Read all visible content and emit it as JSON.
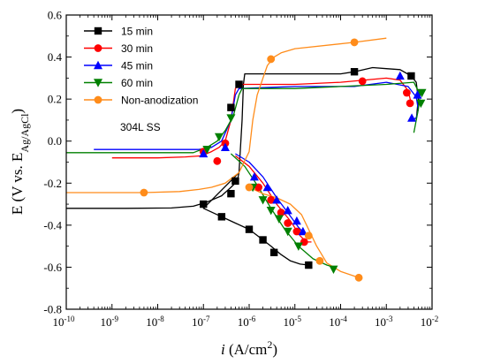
{
  "chart_data": {
    "type": "line",
    "title": "",
    "x_scale": "log",
    "xlim": [
      1e-10,
      0.01
    ],
    "ylim": [
      -0.8,
      0.6
    ],
    "x_ticks": [
      {
        "value": 1e-10,
        "base": "10",
        "exp": "-10"
      },
      {
        "value": 1e-09,
        "base": "10",
        "exp": "-9"
      },
      {
        "value": 1e-08,
        "base": "10",
        "exp": "-8"
      },
      {
        "value": 1e-07,
        "base": "10",
        "exp": "-7"
      },
      {
        "value": 1e-06,
        "base": "10",
        "exp": "-6"
      },
      {
        "value": 1e-05,
        "base": "10",
        "exp": "-5"
      },
      {
        "value": 0.0001,
        "base": "10",
        "exp": "-4"
      },
      {
        "value": 0.001,
        "base": "10",
        "exp": "-3"
      },
      {
        "value": 0.01,
        "base": "10",
        "exp": "-2"
      }
    ],
    "y_ticks": [
      {
        "value": -0.8,
        "label": "-0.8"
      },
      {
        "value": -0.6,
        "label": "-0.6"
      },
      {
        "value": -0.4,
        "label": "-0.4"
      },
      {
        "value": -0.2,
        "label": "-0.2"
      },
      {
        "value": 0.0,
        "label": "0.0"
      },
      {
        "value": 0.2,
        "label": "0.2"
      },
      {
        "value": 0.4,
        "label": "0.4"
      },
      {
        "value": 0.6,
        "label": "0.6"
      }
    ],
    "xlabel": {
      "italic": "i",
      "main": " (A/cm",
      "sup": "2",
      "end": ")"
    },
    "ylabel": {
      "main": "E (V vs. E",
      "sub": "Ag/AgCl",
      "end": ")"
    },
    "legend": {
      "position": "top-left",
      "note": "304L SS",
      "entries": [
        {
          "series": 0,
          "label": "15 min"
        },
        {
          "series": 1,
          "label": "30 min"
        },
        {
          "series": 2,
          "label": "45 min"
        },
        {
          "series": 3,
          "label": "60 min"
        },
        {
          "series": 4,
          "label": "Non-anodization"
        }
      ]
    },
    "series": [
      {
        "name": "15 min",
        "color": "#000000",
        "marker": "square",
        "cathodic": [
          [
            1e-10,
            -0.32
          ],
          [
            2e-09,
            -0.32
          ],
          [
            2e-08,
            -0.318
          ],
          [
            6e-08,
            -0.31
          ],
          [
            1.2e-07,
            -0.29
          ],
          [
            2.5e-07,
            -0.26
          ],
          [
            4e-07,
            -0.22
          ],
          [
            5.5e-07,
            -0.19
          ],
          [
            6e-07,
            -0.15
          ]
        ],
        "anodic": [
          [
            6e-07,
            -0.15
          ],
          [
            7e-07,
            0.1
          ],
          [
            7.5e-07,
            0.27
          ],
          [
            8e-07,
            0.32
          ],
          [
            1e-05,
            0.32
          ],
          [
            0.0001,
            0.32
          ],
          [
            0.0002,
            0.33
          ],
          [
            0.0005,
            0.35
          ],
          [
            0.001,
            0.345
          ],
          [
            0.002,
            0.34
          ],
          [
            0.0035,
            0.31
          ],
          [
            0.0045,
            0.28
          ],
          [
            0.005,
            0.2
          ],
          [
            0.0045,
            0.1
          ]
        ],
        "lower": [
          [
            6e-07,
            -0.15
          ],
          [
            1e-07,
            -0.32
          ],
          [
            2.5e-07,
            -0.36
          ],
          [
            5e-07,
            -0.39
          ],
          [
            1e-06,
            -0.42
          ],
          [
            2e-06,
            -0.47
          ],
          [
            3e-06,
            -0.5
          ],
          [
            5e-06,
            -0.54
          ],
          [
            8e-06,
            -0.57
          ],
          [
            1.3e-05,
            -0.585
          ],
          [
            2e-05,
            -0.59
          ]
        ],
        "markers": [
          [
            1e-07,
            -0.3
          ],
          [
            2.5e-07,
            -0.36
          ],
          [
            4e-07,
            -0.25
          ],
          [
            5e-07,
            -0.19
          ],
          [
            1e-06,
            -0.42
          ],
          [
            2e-06,
            -0.47
          ],
          [
            3.5e-06,
            -0.53
          ],
          [
            2e-05,
            -0.59
          ],
          [
            4e-07,
            0.16
          ],
          [
            6e-07,
            0.27
          ],
          [
            0.0002,
            0.33
          ],
          [
            0.0035,
            0.31
          ]
        ]
      },
      {
        "name": "30 min",
        "color": "#ff0000",
        "marker": "circle",
        "cathodic": [
          [
            1e-09,
            -0.08
          ],
          [
            1e-08,
            -0.08
          ],
          [
            4e-08,
            -0.075
          ],
          [
            9e-08,
            -0.07
          ],
          [
            1.5e-07,
            -0.05
          ],
          [
            2.2e-07,
            -0.03
          ],
          [
            3e-07,
            0.0
          ],
          [
            4e-07,
            0.1
          ],
          [
            5e-07,
            0.25
          ]
        ],
        "anodic": [
          [
            5e-07,
            0.25
          ],
          [
            6e-07,
            0.27
          ],
          [
            1e-05,
            0.27
          ],
          [
            0.0001,
            0.28
          ],
          [
            0.001,
            0.3
          ],
          [
            0.002,
            0.29
          ],
          [
            0.003,
            0.24
          ],
          [
            0.0035,
            0.18
          ]
        ],
        "lower": [
          [
            5e-07,
            -0.07
          ],
          [
            1e-06,
            -0.12
          ],
          [
            2e-06,
            -0.2
          ],
          [
            4e-06,
            -0.3
          ],
          [
            8e-06,
            -0.38
          ],
          [
            1.3e-05,
            -0.45
          ],
          [
            1.8e-05,
            -0.48
          ],
          [
            2.3e-05,
            -0.48
          ]
        ],
        "markers": [
          [
            1e-07,
            -0.05
          ],
          [
            2e-07,
            -0.095
          ],
          [
            3e-07,
            -0.01
          ],
          [
            1.6e-06,
            -0.22
          ],
          [
            3e-06,
            -0.28
          ],
          [
            5e-06,
            -0.34
          ],
          [
            7e-06,
            -0.39
          ],
          [
            1.1e-05,
            -0.43
          ],
          [
            1.6e-05,
            -0.48
          ],
          [
            0.0003,
            0.285
          ],
          [
            0.0028,
            0.23
          ],
          [
            0.0033,
            0.18
          ]
        ]
      },
      {
        "name": "45 min",
        "color": "#0000ff",
        "marker": "triangle-up",
        "cathodic": [
          [
            4e-10,
            -0.04
          ],
          [
            3e-09,
            -0.04
          ],
          [
            3e-08,
            -0.04
          ],
          [
            8e-08,
            -0.04
          ],
          [
            1.5e-07,
            -0.03
          ],
          [
            2.5e-07,
            0.0
          ],
          [
            4e-07,
            0.1
          ],
          [
            5e-07,
            0.22
          ]
        ],
        "anodic": [
          [
            5e-07,
            0.22
          ],
          [
            6e-07,
            0.25
          ],
          [
            1e-05,
            0.26
          ],
          [
            0.0002,
            0.26
          ],
          [
            0.001,
            0.28
          ],
          [
            0.003,
            0.26
          ],
          [
            0.0045,
            0.21
          ],
          [
            0.005,
            0.15
          ],
          [
            0.0045,
            0.11
          ],
          [
            0.0035,
            0.1
          ]
        ],
        "lower": [
          [
            5e-07,
            -0.06
          ],
          [
            1e-06,
            -0.1
          ],
          [
            2e-06,
            -0.17
          ],
          [
            4e-06,
            -0.27
          ],
          [
            7e-06,
            -0.34
          ],
          [
            1.2e-05,
            -0.41
          ],
          [
            1.6e-05,
            -0.44
          ]
        ],
        "markers": [
          [
            1e-07,
            -0.06
          ],
          [
            3e-07,
            -0.03
          ],
          [
            1.3e-06,
            -0.17
          ],
          [
            2.5e-06,
            -0.22
          ],
          [
            4e-06,
            -0.28
          ],
          [
            7e-06,
            -0.33
          ],
          [
            1.1e-05,
            -0.38
          ],
          [
            1.5e-05,
            -0.43
          ],
          [
            0.002,
            0.31
          ],
          [
            0.0048,
            0.22
          ],
          [
            0.0036,
            0.11
          ]
        ]
      },
      {
        "name": "60 min",
        "color": "#008000",
        "marker": "triangle-down",
        "cathodic": [
          [
            1e-10,
            -0.055
          ],
          [
            2e-09,
            -0.055
          ],
          [
            2e-08,
            -0.055
          ],
          [
            6e-08,
            -0.055
          ],
          [
            1.2e-07,
            -0.03
          ],
          [
            2e-07,
            0.0
          ],
          [
            3e-07,
            0.05
          ],
          [
            4.5e-07,
            0.12
          ],
          [
            6e-07,
            0.22
          ]
        ],
        "anodic": [
          [
            6e-07,
            0.22
          ],
          [
            7e-07,
            0.25
          ],
          [
            1e-05,
            0.25
          ],
          [
            0.0001,
            0.26
          ],
          [
            0.001,
            0.27
          ],
          [
            0.004,
            0.28
          ],
          [
            0.0055,
            0.22
          ],
          [
            0.005,
            0.15
          ],
          [
            0.004,
            0.04
          ]
        ],
        "lower": [
          [
            4e-07,
            -0.06
          ],
          [
            8e-07,
            -0.12
          ],
          [
            1.5e-06,
            -0.21
          ],
          [
            3e-06,
            -0.32
          ],
          [
            6e-06,
            -0.42
          ],
          [
            1.2e-05,
            -0.5
          ],
          [
            2.5e-05,
            -0.56
          ],
          [
            5e-05,
            -0.59
          ],
          [
            7e-05,
            -0.6
          ]
        ],
        "markers": [
          [
            1.2e-07,
            -0.04
          ],
          [
            2.2e-07,
            0.02
          ],
          [
            4e-07,
            0.11
          ],
          [
            1.2e-06,
            -0.22
          ],
          [
            2e-06,
            -0.28
          ],
          [
            3e-06,
            -0.33
          ],
          [
            4.5e-06,
            -0.37
          ],
          [
            7e-06,
            -0.43
          ],
          [
            1.2e-05,
            -0.5
          ],
          [
            7e-05,
            -0.61
          ],
          [
            0.006,
            0.23
          ],
          [
            0.0057,
            0.18
          ]
        ]
      },
      {
        "name": "Non-anodization",
        "color": "#ff8c1a",
        "marker": "circle",
        "cathodic": [
          [
            1e-10,
            -0.245
          ],
          [
            5e-09,
            -0.245
          ],
          [
            3e-08,
            -0.24
          ],
          [
            8e-08,
            -0.23
          ],
          [
            1.5e-07,
            -0.22
          ],
          [
            3e-07,
            -0.2
          ],
          [
            6e-07,
            -0.15
          ],
          [
            1e-06,
            -0.05
          ],
          [
            1.2e-06,
            0.1
          ],
          [
            1.5e-06,
            0.22
          ],
          [
            2e-06,
            0.3
          ],
          [
            2.5e-06,
            0.36
          ],
          [
            3.5e-06,
            0.4
          ],
          [
            5e-06,
            0.42
          ],
          [
            1e-05,
            0.44
          ],
          [
            0.0002,
            0.47
          ],
          [
            0.001,
            0.49
          ]
        ],
        "lower": [
          [
            1e-06,
            -0.22
          ],
          [
            2e-06,
            -0.25
          ],
          [
            4e-06,
            -0.27
          ],
          [
            8e-06,
            -0.3
          ],
          [
            1.4e-05,
            -0.35
          ],
          [
            2e-05,
            -0.42
          ],
          [
            3e-05,
            -0.5
          ],
          [
            5e-05,
            -0.58
          ],
          [
            0.0001,
            -0.62
          ],
          [
            0.00025,
            -0.65
          ]
        ],
        "markers": [
          [
            5e-09,
            -0.245
          ],
          [
            1e-06,
            -0.22
          ],
          [
            2e-05,
            -0.45
          ],
          [
            3.5e-05,
            -0.57
          ],
          [
            0.00025,
            -0.65
          ],
          [
            3e-06,
            0.39
          ],
          [
            0.0002,
            0.47
          ]
        ]
      }
    ]
  }
}
